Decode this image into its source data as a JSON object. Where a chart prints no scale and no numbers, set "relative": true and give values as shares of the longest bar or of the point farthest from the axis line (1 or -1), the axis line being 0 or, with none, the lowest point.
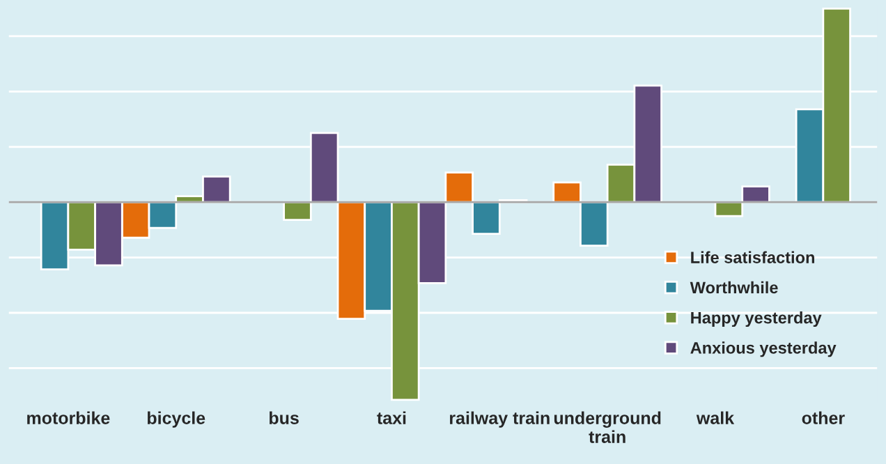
{
  "chart_data": {
    "type": "bar",
    "relative": true,
    "categories": [
      "motorbike",
      "bicycle",
      "bus",
      "taxi",
      "railway train",
      "underground\ntrain",
      "walk",
      "other"
    ],
    "series": [
      {
        "name": "Life satisfaction",
        "color": "#e46c0a",
        "values": [
          null,
          -0.18,
          null,
          -0.59,
          0.15,
          0.1,
          null,
          null
        ]
      },
      {
        "name": "Worthwhile",
        "color": "#31859c",
        "values": [
          -0.34,
          -0.13,
          null,
          -0.55,
          -0.16,
          -0.22,
          null,
          0.47
        ]
      },
      {
        "name": "Happy yesterday",
        "color": "#77933c",
        "values": [
          -0.24,
          0.03,
          -0.09,
          -1,
          0.01,
          0.19,
          -0.07,
          0.98
        ]
      },
      {
        "name": "Anxious yesterday",
        "color": "#604a7b",
        "values": [
          -0.32,
          0.13,
          0.35,
          -0.41,
          null,
          0.59,
          0.08,
          null
        ]
      }
    ],
    "grid": "y",
    "legend": "bottom right",
    "tick_labels": "x"
  }
}
